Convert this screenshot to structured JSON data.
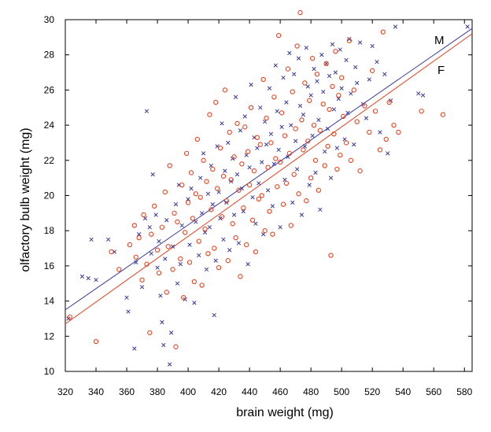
{
  "chart_data": {
    "type": "scatter",
    "xlabel": "brain weight (mg)",
    "ylabel": "olfactory bulb weight (mg)",
    "xlim": [
      320,
      585
    ],
    "ylim": [
      10,
      30
    ],
    "x_ticks": [
      320,
      340,
      360,
      380,
      400,
      420,
      440,
      460,
      480,
      500,
      520,
      540,
      560,
      580
    ],
    "y_ticks": [
      10,
      12,
      14,
      16,
      18,
      20,
      22,
      24,
      26,
      28,
      30
    ],
    "grid": false,
    "series": [
      {
        "name": "M",
        "marker": "x",
        "color": "#3a3a9a",
        "fit": {
          "x": [
            320,
            585
          ],
          "y": [
            13.5,
            29.5
          ]
        },
        "points": [
          [
            322,
            13.0
          ],
          [
            331,
            15.4
          ],
          [
            335,
            15.3
          ],
          [
            337,
            17.5
          ],
          [
            340,
            15.2
          ],
          [
            348,
            17.5
          ],
          [
            352,
            16.8
          ],
          [
            360,
            14.2
          ],
          [
            361,
            13.4
          ],
          [
            365,
            11.3
          ],
          [
            366,
            16.2
          ],
          [
            368,
            17.8
          ],
          [
            370,
            14.8
          ],
          [
            372,
            18.7
          ],
          [
            373,
            24.8
          ],
          [
            375,
            18.2
          ],
          [
            376,
            16.7
          ],
          [
            377,
            21.2
          ],
          [
            379,
            18.9
          ],
          [
            380,
            15.9
          ],
          [
            381,
            17.4
          ],
          [
            382,
            14.3
          ],
          [
            383,
            12.8
          ],
          [
            384,
            11.5
          ],
          [
            385,
            16.4
          ],
          [
            386,
            18.6
          ],
          [
            388,
            10.4
          ],
          [
            389,
            12.2
          ],
          [
            390,
            17.1
          ],
          [
            392,
            19.5
          ],
          [
            393,
            15.0
          ],
          [
            394,
            20.6
          ],
          [
            395,
            16.1
          ],
          [
            396,
            18.3
          ],
          [
            398,
            14.1
          ],
          [
            400,
            19.8
          ],
          [
            401,
            17.2
          ],
          [
            402,
            20.4
          ],
          [
            404,
            13.9
          ],
          [
            405,
            18.5
          ],
          [
            407,
            16.6
          ],
          [
            408,
            21.0
          ],
          [
            409,
            19.0
          ],
          [
            410,
            22.4
          ],
          [
            411,
            17.9
          ],
          [
            412,
            15.8
          ],
          [
            413,
            20.1
          ],
          [
            414,
            18.2
          ],
          [
            415,
            21.7
          ],
          [
            416,
            19.5
          ],
          [
            417,
            13.2
          ],
          [
            418,
            16.3
          ],
          [
            419,
            22.8
          ],
          [
            420,
            20.2
          ],
          [
            421,
            18.7
          ],
          [
            422,
            24.1
          ],
          [
            423,
            17.5
          ],
          [
            424,
            21.4
          ],
          [
            425,
            19.6
          ],
          [
            426,
            23.0
          ],
          [
            427,
            16.9
          ],
          [
            428,
            20.8
          ],
          [
            429,
            22.1
          ],
          [
            430,
            18.9
          ],
          [
            431,
            25.6
          ],
          [
            432,
            21.2
          ],
          [
            433,
            17.3
          ],
          [
            434,
            23.7
          ],
          [
            435,
            20.4
          ],
          [
            436,
            19.1
          ],
          [
            437,
            24.5
          ],
          [
            438,
            22.3
          ],
          [
            439,
            16.1
          ],
          [
            440,
            21.6
          ],
          [
            441,
            26.3
          ],
          [
            442,
            19.9
          ],
          [
            443,
            23.3
          ],
          [
            444,
            18.4
          ],
          [
            445,
            22.7
          ],
          [
            446,
            20.7
          ],
          [
            447,
            25.0
          ],
          [
            448,
            21.9
          ],
          [
            449,
            17.8
          ],
          [
            450,
            24.2
          ],
          [
            451,
            22.9
          ],
          [
            452,
            20.3
          ],
          [
            453,
            26.1
          ],
          [
            454,
            23.5
          ],
          [
            455,
            19.4
          ],
          [
            456,
            21.8
          ],
          [
            457,
            27.4
          ],
          [
            458,
            24.8
          ],
          [
            459,
            22.6
          ],
          [
            460,
            18.2
          ],
          [
            461,
            23.9
          ],
          [
            462,
            26.7
          ],
          [
            463,
            20.9
          ],
          [
            464,
            25.3
          ],
          [
            465,
            22.2
          ],
          [
            466,
            28.1
          ],
          [
            467,
            24.0
          ],
          [
            468,
            19.6
          ],
          [
            469,
            26.9
          ],
          [
            470,
            23.1
          ],
          [
            471,
            21.5
          ],
          [
            472,
            27.8
          ],
          [
            473,
            25.1
          ],
          [
            474,
            18.9
          ],
          [
            475,
            24.6
          ],
          [
            476,
            22.8
          ],
          [
            477,
            28.4
          ],
          [
            478,
            26.2
          ],
          [
            479,
            20.6
          ],
          [
            480,
            25.7
          ],
          [
            481,
            23.4
          ],
          [
            482,
            27.2
          ],
          [
            483,
            21.3
          ],
          [
            484,
            26.5
          ],
          [
            485,
            24.3
          ],
          [
            486,
            19.2
          ],
          [
            487,
            28.0
          ],
          [
            488,
            25.9
          ],
          [
            489,
            22.5
          ],
          [
            490,
            27.5
          ],
          [
            491,
            23.8
          ],
          [
            492,
            26.8
          ],
          [
            493,
            21.0
          ],
          [
            494,
            28.6
          ],
          [
            495,
            24.9
          ],
          [
            496,
            27.0
          ],
          [
            497,
            22.7
          ],
          [
            498,
            25.5
          ],
          [
            499,
            28.3
          ],
          [
            500,
            26.1
          ],
          [
            502,
            23.2
          ],
          [
            503,
            27.7
          ],
          [
            504,
            24.7
          ],
          [
            505,
            28.9
          ],
          [
            506,
            25.8
          ],
          [
            508,
            22.9
          ],
          [
            509,
            27.3
          ],
          [
            510,
            26.4
          ],
          [
            512,
            28.7
          ],
          [
            514,
            25.2
          ],
          [
            516,
            24.4
          ],
          [
            518,
            26.6
          ],
          [
            520,
            28.5
          ],
          [
            523,
            27.6
          ],
          [
            525,
            23.6
          ],
          [
            528,
            26.9
          ],
          [
            530,
            22.4
          ],
          [
            532,
            25.4
          ],
          [
            535,
            29.6
          ],
          [
            550,
            25.8
          ],
          [
            553,
            25.7
          ],
          [
            582,
            29.6
          ]
        ]
      },
      {
        "name": "F",
        "marker": "o",
        "color": "#e8401c",
        "fit": {
          "x": [
            320,
            585
          ],
          "y": [
            12.7,
            29.2
          ]
        },
        "points": [
          [
            323,
            13.1
          ],
          [
            340,
            11.7
          ],
          [
            350,
            16.8
          ],
          [
            355,
            15.8
          ],
          [
            362,
            17.2
          ],
          [
            365,
            18.3
          ],
          [
            366,
            16.5
          ],
          [
            368,
            17.6
          ],
          [
            370,
            15.2
          ],
          [
            371,
            18.9
          ],
          [
            373,
            16.1
          ],
          [
            375,
            12.2
          ],
          [
            376,
            17.8
          ],
          [
            378,
            19.4
          ],
          [
            380,
            16.9
          ],
          [
            381,
            15.6
          ],
          [
            383,
            18.2
          ],
          [
            385,
            20.2
          ],
          [
            386,
            14.5
          ],
          [
            387,
            17.1
          ],
          [
            388,
            21.7
          ],
          [
            390,
            15.8
          ],
          [
            391,
            19.0
          ],
          [
            392,
            11.4
          ],
          [
            393,
            18.5
          ],
          [
            395,
            16.4
          ],
          [
            396,
            20.6
          ],
          [
            397,
            14.2
          ],
          [
            398,
            17.9
          ],
          [
            399,
            22.4
          ],
          [
            400,
            19.6
          ],
          [
            401,
            16.2
          ],
          [
            402,
            21.3
          ],
          [
            403,
            18.7
          ],
          [
            404,
            15.1
          ],
          [
            405,
            20.1
          ],
          [
            406,
            23.2
          ],
          [
            407,
            17.4
          ],
          [
            408,
            19.9
          ],
          [
            409,
            14.9
          ],
          [
            410,
            22.0
          ],
          [
            411,
            18.1
          ],
          [
            412,
            20.8
          ],
          [
            413,
            16.7
          ],
          [
            414,
            24.6
          ],
          [
            415,
            19.2
          ],
          [
            416,
            21.5
          ],
          [
            417,
            17.0
          ],
          [
            418,
            25.3
          ],
          [
            419,
            20.4
          ],
          [
            420,
            15.9
          ],
          [
            421,
            22.7
          ],
          [
            422,
            18.8
          ],
          [
            423,
            21.1
          ],
          [
            424,
            26.0
          ],
          [
            425,
            19.7
          ],
          [
            426,
            16.3
          ],
          [
            427,
            23.6
          ],
          [
            428,
            20.9
          ],
          [
            429,
            18.4
          ],
          [
            430,
            22.2
          ],
          [
            431,
            17.6
          ],
          [
            432,
            24.1
          ],
          [
            433,
            20.3
          ],
          [
            434,
            15.4
          ],
          [
            435,
            21.8
          ],
          [
            436,
            19.3
          ],
          [
            437,
            23.9
          ],
          [
            438,
            17.2
          ],
          [
            439,
            22.5
          ],
          [
            440,
            20.6
          ],
          [
            441,
            25.0
          ],
          [
            442,
            18.6
          ],
          [
            443,
            21.4
          ],
          [
            444,
            16.8
          ],
          [
            445,
            23.3
          ],
          [
            446,
            19.8
          ],
          [
            447,
            22.9
          ],
          [
            448,
            20.0
          ],
          [
            449,
            26.6
          ],
          [
            450,
            18.0
          ],
          [
            451,
            24.4
          ],
          [
            452,
            21.6
          ],
          [
            453,
            19.1
          ],
          [
            454,
            23.0
          ],
          [
            455,
            17.8
          ],
          [
            456,
            25.6
          ],
          [
            457,
            22.1
          ],
          [
            458,
            20.5
          ],
          [
            459,
            29.1
          ],
          [
            460,
            21.9
          ],
          [
            461,
            24.7
          ],
          [
            462,
            19.5
          ],
          [
            463,
            23.4
          ],
          [
            464,
            20.7
          ],
          [
            465,
            27.2
          ],
          [
            466,
            22.4
          ],
          [
            467,
            18.3
          ],
          [
            468,
            25.9
          ],
          [
            469,
            21.2
          ],
          [
            470,
            23.8
          ],
          [
            471,
            28.5
          ],
          [
            472,
            20.1
          ],
          [
            473,
            30.4
          ],
          [
            474,
            24.3
          ],
          [
            475,
            22.6
          ],
          [
            476,
            26.4
          ],
          [
            477,
            19.7
          ],
          [
            478,
            23.1
          ],
          [
            479,
            25.4
          ],
          [
            480,
            21.0
          ],
          [
            481,
            27.8
          ],
          [
            482,
            24.0
          ],
          [
            483,
            22.0
          ],
          [
            484,
            26.9
          ],
          [
            485,
            20.3
          ],
          [
            486,
            23.7
          ],
          [
            488,
            25.2
          ],
          [
            489,
            21.7
          ],
          [
            490,
            27.5
          ],
          [
            491,
            22.8
          ],
          [
            492,
            24.9
          ],
          [
            493,
            16.6
          ],
          [
            494,
            26.2
          ],
          [
            495,
            23.5
          ],
          [
            496,
            28.2
          ],
          [
            497,
            21.5
          ],
          [
            498,
            25.7
          ],
          [
            499,
            22.3
          ],
          [
            500,
            26.7
          ],
          [
            501,
            24.5
          ],
          [
            503,
            23.0
          ],
          [
            505,
            28.8
          ],
          [
            506,
            22.0
          ],
          [
            508,
            26.0
          ],
          [
            510,
            24.2
          ],
          [
            512,
            21.4
          ],
          [
            515,
            25.1
          ],
          [
            518,
            23.6
          ],
          [
            520,
            27.1
          ],
          [
            522,
            24.8
          ],
          [
            525,
            22.6
          ],
          [
            527,
            29.3
          ],
          [
            529,
            23.2
          ],
          [
            531,
            25.3
          ],
          [
            534,
            24.0
          ],
          [
            537,
            23.6
          ],
          [
            552,
            24.8
          ],
          [
            566,
            24.6
          ]
        ]
      }
    ]
  },
  "line_labels": {
    "m": "M",
    "f": "F"
  }
}
